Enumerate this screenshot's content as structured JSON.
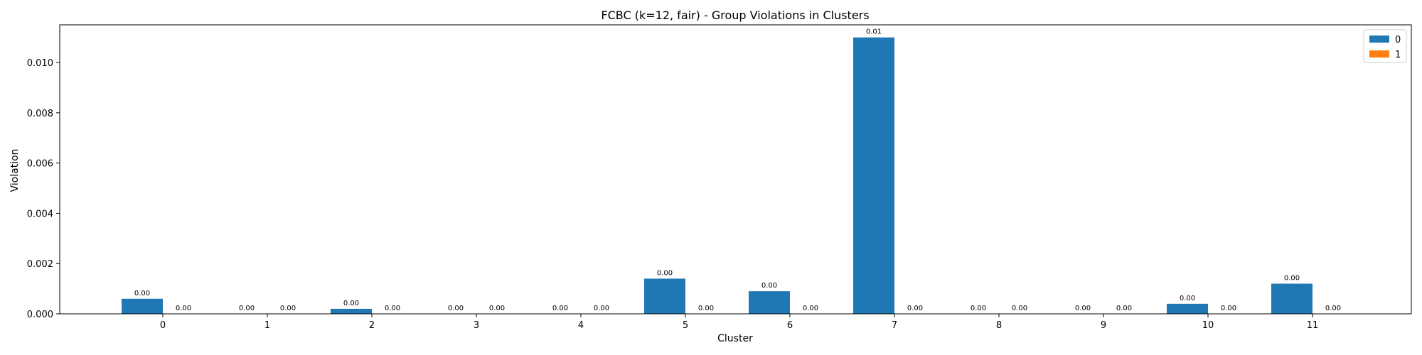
{
  "chart_data": {
    "type": "bar",
    "title": "FCBC (k=12, fair) - Group Violations in Clusters",
    "xlabel": "Cluster",
    "ylabel": "Violation",
    "categories": [
      "0",
      "1",
      "2",
      "3",
      "4",
      "5",
      "6",
      "7",
      "8",
      "9",
      "10",
      "11"
    ],
    "series": [
      {
        "name": "0",
        "color": "#1f77b4",
        "values": [
          0.0006,
          0,
          0.0002,
          0,
          0,
          0.0014,
          0.0009,
          0.011,
          0,
          0,
          0.0004,
          0.0012
        ],
        "labels": [
          "0.00",
          "0.00",
          "0.00",
          "0.00",
          "0.00",
          "0.00",
          "0.00",
          "0.01",
          "0.00",
          "0.00",
          "0.00",
          "0.00"
        ]
      },
      {
        "name": "1",
        "color": "#ff7f0e",
        "values": [
          0,
          0,
          0,
          0,
          0,
          0,
          0,
          0,
          0,
          0,
          0,
          0
        ],
        "labels": [
          "0.00",
          "0.00",
          "0.00",
          "0.00",
          "0.00",
          "0.00",
          "0.00",
          "0.00",
          "0.00",
          "0.00",
          "0.00",
          "0.00"
        ]
      }
    ],
    "ylim": [
      0,
      0.0115
    ],
    "yticks": [
      "0.000",
      "0.002",
      "0.004",
      "0.006",
      "0.008",
      "0.010"
    ],
    "grid": false,
    "legend": "top-right"
  }
}
